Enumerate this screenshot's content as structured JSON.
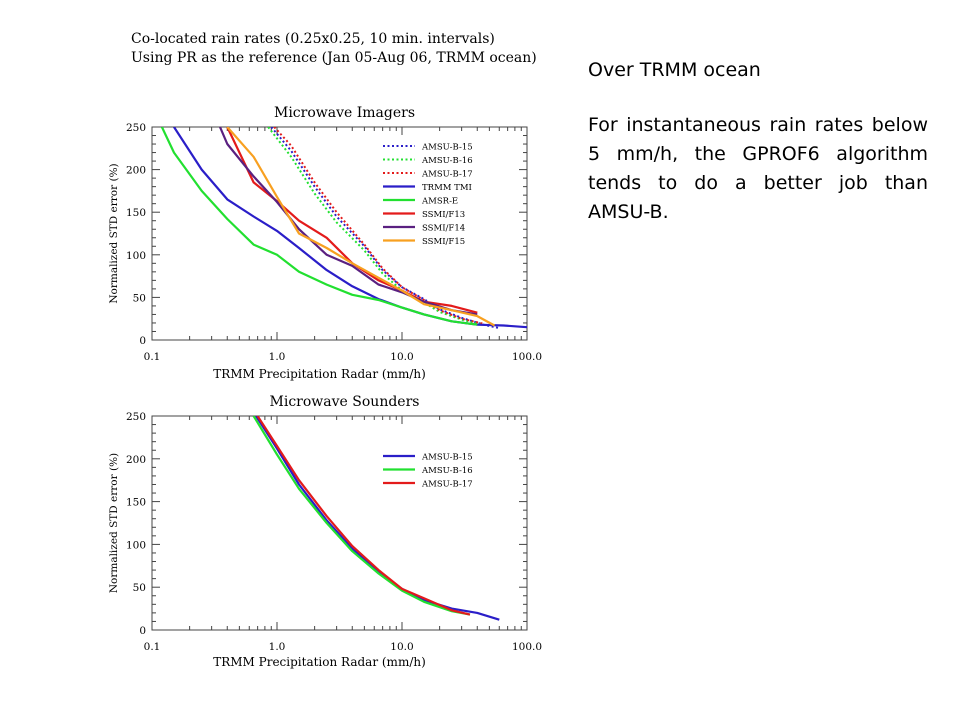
{
  "header": {
    "line1": "Co-located rain rates (0.25x0.25, 10 min. intervals)",
    "line2": "Using PR as the reference (Jan 05-Aug 06, TRMM ocean)"
  },
  "notes": {
    "title": "Over TRMM ocean",
    "body": "For instantaneous rain rates below 5 mm/h, the GPROF6 algorithm tends to do a better job than AMSU-B."
  },
  "chart_data": [
    {
      "type": "line",
      "title": "Microwave Imagers",
      "xlabel": "TRMM Precipitation Radar (mm/h)",
      "ylabel": "Normalized STD error (%)",
      "xscale": "log",
      "xlim": [
        0.1,
        100
      ],
      "ylim": [
        0,
        250
      ],
      "xticks": [
        "0.1",
        "1.0",
        "10.0",
        "100.0"
      ],
      "yticks": [
        "0",
        "50",
        "100",
        "150",
        "200",
        "250"
      ],
      "legend_position": "top-right",
      "series": [
        {
          "name": "AMSU-B-15",
          "color": "#2a1ec8",
          "dash": "dotted",
          "x": [
            0.9,
            1.3,
            2.0,
            3.0,
            5.0,
            7.0,
            10,
            15,
            20,
            30,
            45,
            60
          ],
          "y": [
            250,
            222,
            180,
            145,
            110,
            82,
            62,
            48,
            36,
            26,
            18,
            14
          ]
        },
        {
          "name": "AMSU-B-16",
          "color": "#22e030",
          "dash": "dotted",
          "x": [
            0.85,
            1.3,
            2.0,
            3.0,
            5.0,
            7.0,
            10,
            15,
            20,
            30,
            45
          ],
          "y": [
            250,
            215,
            172,
            138,
            105,
            78,
            58,
            44,
            33,
            24,
            18
          ]
        },
        {
          "name": "AMSU-B-17",
          "color": "#e31b1b",
          "dash": "dotted",
          "x": [
            0.95,
            1.3,
            2.0,
            3.0,
            5.0,
            7.0,
            10,
            15,
            20,
            30,
            45
          ],
          "y": [
            250,
            228,
            185,
            150,
            112,
            84,
            62,
            47,
            35,
            25,
            19
          ]
        },
        {
          "name": "TRMM TMI",
          "color": "#2a1ec8",
          "dash": "solid",
          "x": [
            0.15,
            0.25,
            0.4,
            0.65,
            1.0,
            1.5,
            2.5,
            4.0,
            6.5,
            10,
            15,
            25,
            40,
            65,
            100
          ],
          "y": [
            250,
            200,
            165,
            145,
            128,
            108,
            82,
            63,
            48,
            38,
            30,
            22,
            18,
            17,
            15
          ]
        },
        {
          "name": "AMSR-E",
          "color": "#22e030",
          "dash": "solid",
          "x": [
            0.12,
            0.15,
            0.25,
            0.4,
            0.65,
            1.0,
            1.5,
            2.5,
            4.0,
            6.5,
            10,
            15,
            25,
            40
          ],
          "y": [
            250,
            220,
            175,
            142,
            112,
            100,
            80,
            65,
            53,
            47,
            38,
            30,
            22,
            18
          ]
        },
        {
          "name": "SSMI/F13",
          "color": "#e31b1b",
          "dash": "solid",
          "x": [
            0.4,
            0.65,
            1.0,
            1.5,
            2.5,
            4.0,
            6.5,
            10,
            15,
            25,
            40
          ],
          "y": [
            250,
            185,
            163,
            140,
            120,
            90,
            70,
            58,
            45,
            40,
            32
          ]
        },
        {
          "name": "SSMI/F14",
          "color": "#5a2080",
          "dash": "solid",
          "x": [
            0.35,
            0.4,
            0.65,
            1.0,
            1.5,
            2.5,
            4.0,
            6.5,
            10,
            15,
            25,
            40
          ],
          "y": [
            250,
            230,
            192,
            162,
            130,
            100,
            87,
            65,
            56,
            45,
            35,
            30
          ]
        },
        {
          "name": "SSMI/F15",
          "color": "#f8a020",
          "dash": "solid",
          "x": [
            0.4,
            0.65,
            1.0,
            1.5,
            2.5,
            4.0,
            6.5,
            10,
            15,
            25,
            40,
            55
          ],
          "y": [
            250,
            215,
            168,
            125,
            108,
            90,
            73,
            58,
            42,
            35,
            28,
            17
          ]
        }
      ]
    },
    {
      "type": "line",
      "title": "Microwave Sounders",
      "xlabel": "TRMM Precipitation Radar (mm/h)",
      "ylabel": "Normalized STD error (%)",
      "xscale": "log",
      "xlim": [
        0.1,
        100
      ],
      "ylim": [
        0,
        250
      ],
      "xticks": [
        "0.1",
        "1.0",
        "10.0",
        "100.0"
      ],
      "yticks": [
        "0",
        "50",
        "100",
        "150",
        "200",
        "250"
      ],
      "legend_position": "top-right",
      "series": [
        {
          "name": "AMSU-B-15",
          "color": "#2a1ec8",
          "dash": "solid",
          "x": [
            0.68,
            1.0,
            1.5,
            2.5,
            4.0,
            6.5,
            10,
            15,
            25,
            40,
            60
          ],
          "y": [
            250,
            212,
            170,
            128,
            95,
            68,
            48,
            35,
            25,
            20,
            12
          ]
        },
        {
          "name": "AMSU-B-16",
          "color": "#22e030",
          "dash": "solid",
          "x": [
            0.65,
            1.0,
            1.5,
            2.5,
            4.0,
            6.5,
            10,
            15,
            25,
            35
          ],
          "y": [
            250,
            205,
            165,
            125,
            92,
            66,
            46,
            33,
            22,
            18
          ]
        },
        {
          "name": "AMSU-B-17",
          "color": "#e31b1b",
          "dash": "solid",
          "x": [
            0.7,
            1.0,
            1.5,
            2.5,
            4.0,
            6.5,
            10,
            15,
            25,
            35
          ],
          "y": [
            250,
            215,
            175,
            133,
            98,
            70,
            48,
            37,
            23,
            18
          ]
        }
      ]
    }
  ]
}
